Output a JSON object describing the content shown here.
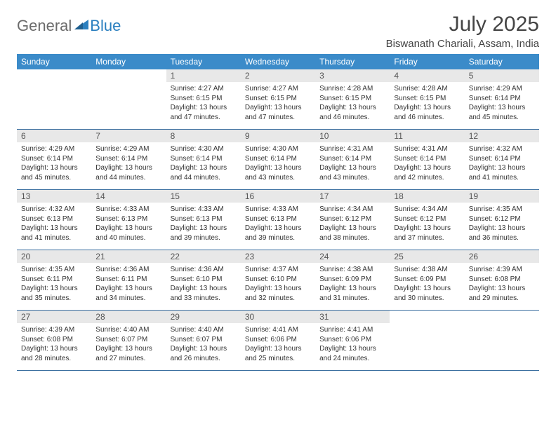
{
  "brand": {
    "part1": "General",
    "part2": "Blue"
  },
  "title": "July 2025",
  "location": "Biswanath Chariali, Assam, India",
  "colors": {
    "header_bg": "#3b8bc9",
    "header_text": "#ffffff",
    "daynum_bg": "#e8e8e8",
    "border": "#3b6fa0",
    "brand_gray": "#6b6b6b",
    "brand_blue": "#2a7fbf"
  },
  "weekdays": [
    "Sunday",
    "Monday",
    "Tuesday",
    "Wednesday",
    "Thursday",
    "Friday",
    "Saturday"
  ],
  "weeks": [
    [
      null,
      null,
      {
        "n": "1",
        "sr": "4:27 AM",
        "ss": "6:15 PM",
        "dl": "13 hours and 47 minutes."
      },
      {
        "n": "2",
        "sr": "4:27 AM",
        "ss": "6:15 PM",
        "dl": "13 hours and 47 minutes."
      },
      {
        "n": "3",
        "sr": "4:28 AM",
        "ss": "6:15 PM",
        "dl": "13 hours and 46 minutes."
      },
      {
        "n": "4",
        "sr": "4:28 AM",
        "ss": "6:15 PM",
        "dl": "13 hours and 46 minutes."
      },
      {
        "n": "5",
        "sr": "4:29 AM",
        "ss": "6:14 PM",
        "dl": "13 hours and 45 minutes."
      }
    ],
    [
      {
        "n": "6",
        "sr": "4:29 AM",
        "ss": "6:14 PM",
        "dl": "13 hours and 45 minutes."
      },
      {
        "n": "7",
        "sr": "4:29 AM",
        "ss": "6:14 PM",
        "dl": "13 hours and 44 minutes."
      },
      {
        "n": "8",
        "sr": "4:30 AM",
        "ss": "6:14 PM",
        "dl": "13 hours and 44 minutes."
      },
      {
        "n": "9",
        "sr": "4:30 AM",
        "ss": "6:14 PM",
        "dl": "13 hours and 43 minutes."
      },
      {
        "n": "10",
        "sr": "4:31 AM",
        "ss": "6:14 PM",
        "dl": "13 hours and 43 minutes."
      },
      {
        "n": "11",
        "sr": "4:31 AM",
        "ss": "6:14 PM",
        "dl": "13 hours and 42 minutes."
      },
      {
        "n": "12",
        "sr": "4:32 AM",
        "ss": "6:14 PM",
        "dl": "13 hours and 41 minutes."
      }
    ],
    [
      {
        "n": "13",
        "sr": "4:32 AM",
        "ss": "6:13 PM",
        "dl": "13 hours and 41 minutes."
      },
      {
        "n": "14",
        "sr": "4:33 AM",
        "ss": "6:13 PM",
        "dl": "13 hours and 40 minutes."
      },
      {
        "n": "15",
        "sr": "4:33 AM",
        "ss": "6:13 PM",
        "dl": "13 hours and 39 minutes."
      },
      {
        "n": "16",
        "sr": "4:33 AM",
        "ss": "6:13 PM",
        "dl": "13 hours and 39 minutes."
      },
      {
        "n": "17",
        "sr": "4:34 AM",
        "ss": "6:12 PM",
        "dl": "13 hours and 38 minutes."
      },
      {
        "n": "18",
        "sr": "4:34 AM",
        "ss": "6:12 PM",
        "dl": "13 hours and 37 minutes."
      },
      {
        "n": "19",
        "sr": "4:35 AM",
        "ss": "6:12 PM",
        "dl": "13 hours and 36 minutes."
      }
    ],
    [
      {
        "n": "20",
        "sr": "4:35 AM",
        "ss": "6:11 PM",
        "dl": "13 hours and 35 minutes."
      },
      {
        "n": "21",
        "sr": "4:36 AM",
        "ss": "6:11 PM",
        "dl": "13 hours and 34 minutes."
      },
      {
        "n": "22",
        "sr": "4:36 AM",
        "ss": "6:10 PM",
        "dl": "13 hours and 33 minutes."
      },
      {
        "n": "23",
        "sr": "4:37 AM",
        "ss": "6:10 PM",
        "dl": "13 hours and 32 minutes."
      },
      {
        "n": "24",
        "sr": "4:38 AM",
        "ss": "6:09 PM",
        "dl": "13 hours and 31 minutes."
      },
      {
        "n": "25",
        "sr": "4:38 AM",
        "ss": "6:09 PM",
        "dl": "13 hours and 30 minutes."
      },
      {
        "n": "26",
        "sr": "4:39 AM",
        "ss": "6:08 PM",
        "dl": "13 hours and 29 minutes."
      }
    ],
    [
      {
        "n": "27",
        "sr": "4:39 AM",
        "ss": "6:08 PM",
        "dl": "13 hours and 28 minutes."
      },
      {
        "n": "28",
        "sr": "4:40 AM",
        "ss": "6:07 PM",
        "dl": "13 hours and 27 minutes."
      },
      {
        "n": "29",
        "sr": "4:40 AM",
        "ss": "6:07 PM",
        "dl": "13 hours and 26 minutes."
      },
      {
        "n": "30",
        "sr": "4:41 AM",
        "ss": "6:06 PM",
        "dl": "13 hours and 25 minutes."
      },
      {
        "n": "31",
        "sr": "4:41 AM",
        "ss": "6:06 PM",
        "dl": "13 hours and 24 minutes."
      },
      null,
      null
    ]
  ],
  "labels": {
    "sunrise": "Sunrise: ",
    "sunset": "Sunset: ",
    "daylight": "Daylight: "
  }
}
